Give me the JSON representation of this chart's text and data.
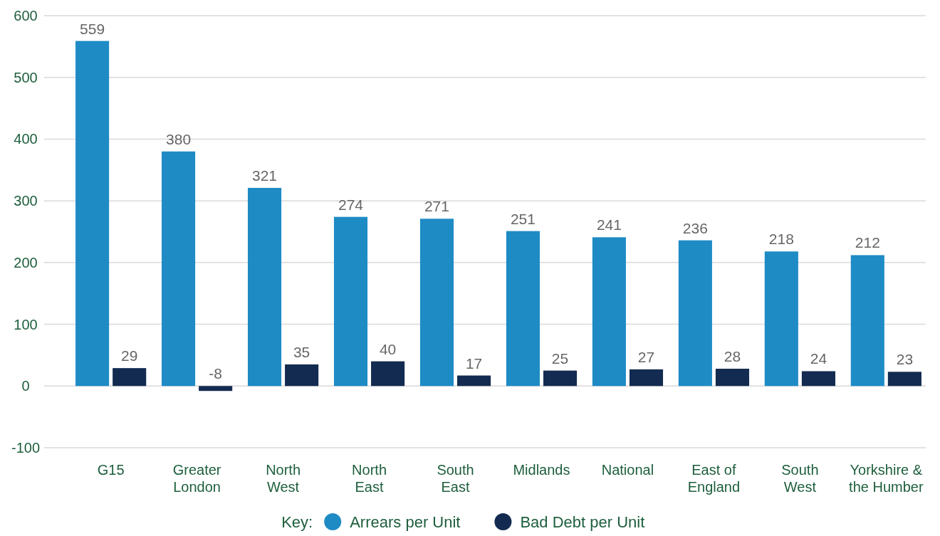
{
  "chart_data": {
    "type": "bar",
    "categories": [
      "G15",
      "Greater London",
      "North West",
      "North East",
      "South East",
      "Midlands",
      "National",
      "East of England",
      "South West",
      "Yorkshire & the Humber"
    ],
    "series": [
      {
        "name": "Arrears per Unit",
        "color": "#1e8bc5",
        "values": [
          559,
          380,
          321,
          274,
          271,
          251,
          241,
          236,
          218,
          212
        ]
      },
      {
        "name": "Bad Debt per Unit",
        "color": "#132b50",
        "values": [
          29,
          -8,
          35,
          40,
          17,
          25,
          27,
          28,
          24,
          23
        ]
      }
    ],
    "ylim": [
      -100,
      600
    ],
    "yticks": [
      -100,
      0,
      100,
      200,
      300,
      400,
      500,
      600
    ],
    "grid": "y",
    "data_labels": true,
    "legend": "bottom",
    "legend_title": "Key:"
  }
}
